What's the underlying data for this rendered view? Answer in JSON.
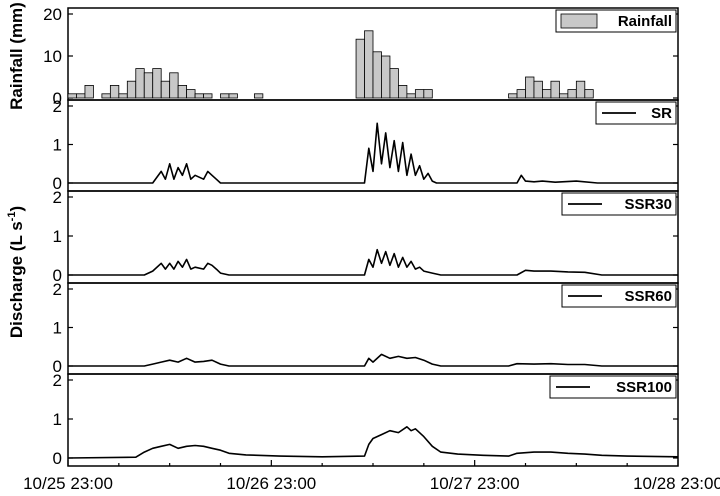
{
  "chart_data": [
    {
      "type": "bar",
      "panel": "rainfall",
      "ylabel": "Rainfall (mm)",
      "ylim": [
        0,
        20
      ],
      "yticks": [
        0,
        10,
        20
      ],
      "legend": "Rainfall",
      "legend_position": "top-right",
      "x_unit": "hours since 10/25 23:00",
      "x": [
        0,
        2,
        4,
        6,
        8,
        10,
        12,
        14,
        16,
        18,
        20,
        22,
        24,
        26,
        28,
        30,
        32,
        36,
        38,
        44,
        68,
        70,
        72,
        74,
        76,
        78,
        80,
        82,
        84,
        86,
        104,
        106,
        108,
        110,
        112,
        114,
        116,
        118,
        120,
        122
      ],
      "values": [
        1,
        1,
        3,
        0,
        1,
        3,
        1,
        4,
        7,
        6,
        7,
        4,
        6,
        3,
        2,
        1,
        1,
        1,
        1,
        1,
        14,
        16,
        11,
        10,
        7,
        3,
        1,
        2,
        2,
        0,
        1,
        2,
        5,
        4,
        2,
        4,
        1,
        2,
        4,
        2
      ]
    },
    {
      "type": "line",
      "panel": "SR",
      "legend": "SR",
      "legend_position": "top-right",
      "ylim": [
        0,
        2
      ],
      "yticks": [
        0,
        1,
        2
      ],
      "x": [
        0,
        20,
        22,
        23,
        24,
        25,
        26,
        27,
        28,
        29,
        30,
        32,
        33,
        34,
        35,
        36,
        40,
        70,
        71,
        72,
        73,
        74,
        75,
        76,
        77,
        78,
        79,
        80,
        81,
        82,
        83,
        84,
        85,
        86,
        87,
        88,
        106,
        107,
        108,
        110,
        112,
        115,
        120,
        125,
        144
      ],
      "values": [
        0,
        0,
        0.3,
        0.1,
        0.5,
        0.1,
        0.4,
        0.2,
        0.5,
        0.1,
        0.2,
        0.1,
        0.3,
        0.2,
        0.1,
        0,
        0,
        0,
        0.9,
        0.3,
        1.55,
        0.5,
        1.3,
        0.4,
        1.1,
        0.3,
        1.05,
        0.2,
        0.75,
        0.2,
        0.45,
        0.1,
        0.25,
        0.05,
        0,
        0,
        0,
        0.2,
        0.05,
        0.03,
        0.05,
        0.02,
        0.05,
        0,
        0
      ]
    },
    {
      "type": "line",
      "panel": "SSR30",
      "legend": "SSR30",
      "legend_position": "top-right",
      "ylim": [
        0,
        2
      ],
      "yticks": [
        0,
        1,
        2
      ],
      "x": [
        0,
        18,
        20,
        22,
        23,
        24,
        25,
        26,
        27,
        28,
        29,
        30,
        32,
        33,
        34,
        35,
        36,
        38,
        70,
        71,
        72,
        73,
        74,
        75,
        76,
        77,
        78,
        79,
        80,
        81,
        82,
        83,
        84,
        86,
        88,
        106,
        108,
        110,
        114,
        118,
        122,
        126,
        144
      ],
      "values": [
        0,
        0,
        0.1,
        0.3,
        0.15,
        0.3,
        0.15,
        0.35,
        0.2,
        0.4,
        0.15,
        0.2,
        0.15,
        0.3,
        0.25,
        0.15,
        0.05,
        0,
        0,
        0.4,
        0.2,
        0.65,
        0.3,
        0.6,
        0.25,
        0.55,
        0.2,
        0.45,
        0.2,
        0.35,
        0.15,
        0.2,
        0.1,
        0.05,
        0,
        0,
        0.12,
        0.1,
        0.1,
        0.08,
        0.07,
        0,
        0
      ]
    },
    {
      "type": "line",
      "panel": "SSR60",
      "legend": "SSR60",
      "legend_position": "top-right",
      "ylim": [
        0,
        2
      ],
      "yticks": [
        0,
        1,
        2
      ],
      "x": [
        0,
        18,
        20,
        22,
        24,
        26,
        28,
        30,
        32,
        34,
        36,
        38,
        70,
        71,
        72,
        74,
        76,
        78,
        80,
        82,
        84,
        86,
        88,
        104,
        106,
        110,
        114,
        118,
        122,
        126,
        144
      ],
      "values": [
        0,
        0,
        0.05,
        0.1,
        0.15,
        0.1,
        0.2,
        0.1,
        0.12,
        0.15,
        0.05,
        0,
        0,
        0.2,
        0.1,
        0.3,
        0.2,
        0.25,
        0.2,
        0.22,
        0.15,
        0.05,
        0,
        0,
        0.06,
        0.05,
        0.06,
        0.04,
        0.04,
        0,
        0
      ]
    },
    {
      "type": "line",
      "panel": "SSR100",
      "legend": "SSR100",
      "legend_position": "top-right",
      "ylim": [
        0,
        2
      ],
      "yticks": [
        0,
        1,
        2
      ],
      "x": [
        0,
        16,
        18,
        20,
        22,
        24,
        26,
        28,
        30,
        32,
        34,
        36,
        38,
        42,
        50,
        60,
        70,
        71,
        72,
        74,
        76,
        78,
        80,
        81,
        82,
        84,
        86,
        88,
        92,
        98,
        104,
        106,
        110,
        114,
        118,
        122,
        126,
        132,
        144
      ],
      "values": [
        0,
        0.02,
        0.15,
        0.25,
        0.3,
        0.35,
        0.25,
        0.3,
        0.32,
        0.3,
        0.25,
        0.2,
        0.12,
        0.08,
        0.05,
        0.03,
        0.05,
        0.35,
        0.5,
        0.6,
        0.7,
        0.65,
        0.8,
        0.7,
        0.75,
        0.55,
        0.3,
        0.15,
        0.1,
        0.07,
        0.05,
        0.12,
        0.15,
        0.15,
        0.12,
        0.1,
        0.07,
        0.05,
        0.03
      ]
    }
  ],
  "xaxis": {
    "xlim": [
      0,
      144
    ],
    "ticks": [
      0,
      48,
      96,
      144
    ],
    "tick_labels": [
      "10/25 23:00",
      "10/26 23:00",
      "10/27 23:00",
      "10/28 23:00"
    ]
  },
  "discharge_ylabel": "Discharge (L s-1)",
  "discharge_ylabel_parts": [
    "Discharge (L s",
    "-1",
    ")"
  ]
}
